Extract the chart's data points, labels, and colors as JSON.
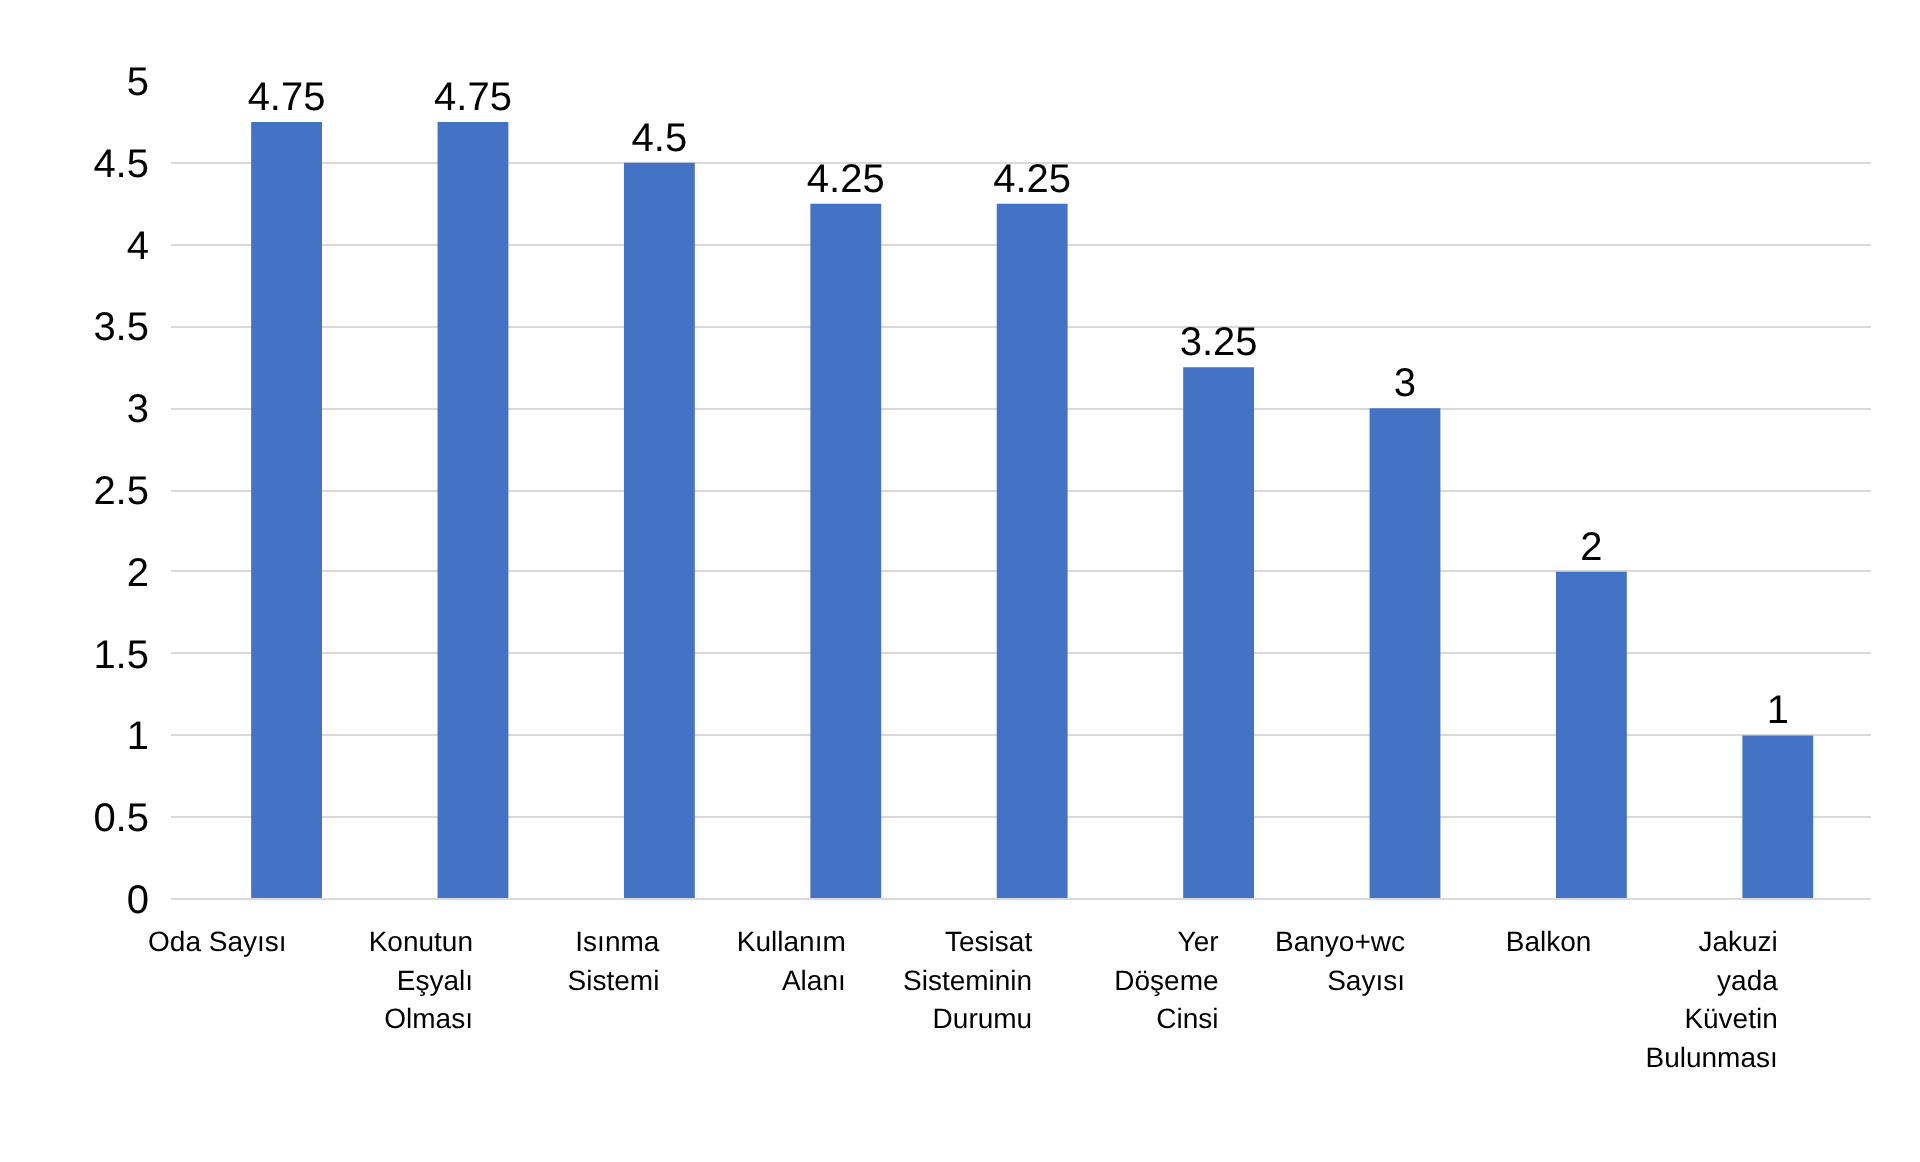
{
  "chart_data": {
    "type": "bar",
    "categories": [
      "Oda Sayısı",
      "Konutun\nEşyalı\nOlması",
      "Isınma\nSistemi",
      "Kullanım\nAlanı",
      "Tesisat\nSisteminin\nDurumu",
      "Yer\nDöşeme\nCinsi",
      "Banyo+wc\nSayısı",
      "Balkon",
      "Jakuzi\nyada\nKüvetin\nBulunması"
    ],
    "values": [
      4.75,
      4.75,
      4.5,
      4.25,
      4.25,
      3.25,
      3,
      2,
      1
    ],
    "color": "#4472c4",
    "ylim": [
      0,
      5
    ],
    "yticks": [
      0,
      0.5,
      1,
      1.5,
      2,
      2.5,
      3,
      3.5,
      4,
      4.5,
      5
    ],
    "grid": "y",
    "data_labels": true
  }
}
